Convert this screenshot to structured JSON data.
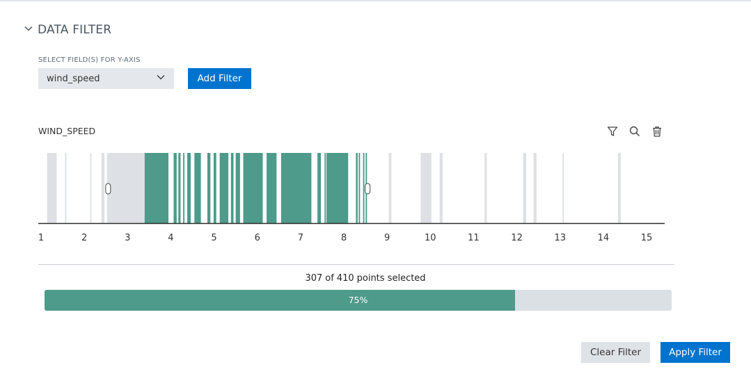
{
  "section": {
    "title": "DATA FILTER",
    "icon": "chevron-down-icon"
  },
  "field_select": {
    "label": "SELECT FIELD(S) FOR Y-AXIS",
    "value": "wind_speed",
    "icon": "chevron-down-icon"
  },
  "buttons": {
    "add_filter": "Add Filter",
    "clear_filter": "Clear Filter",
    "apply_filter": "Apply Filter"
  },
  "chart_header": {
    "title": "WIND_SPEED",
    "icons": [
      "filter-icon",
      "search-icon",
      "trash-icon"
    ]
  },
  "colors": {
    "selected": "#4e9a8b",
    "unselected": "#dde1e5",
    "accent": "#0073cf"
  },
  "chart_data": {
    "type": "bar",
    "xlim": [
      1,
      15
    ],
    "tick_labels": [
      "1",
      "2",
      "3",
      "4",
      "5",
      "6",
      "7",
      "8",
      "9",
      "10",
      "11",
      "12",
      "13",
      "14",
      "15"
    ],
    "selection_range": [
      2.55,
      8.55
    ],
    "bars": [
      {
        "x": 1.25,
        "w": 0.22
      },
      {
        "x": 1.57,
        "w": 0.03
      },
      {
        "x": 2.15,
        "w": 0.03
      },
      {
        "x": 2.43,
        "w": 0.07
      },
      {
        "x": 3.0,
        "w": 0.95
      },
      {
        "x": 3.67,
        "w": 0.55
      },
      {
        "x": 4.1,
        "w": 0.07
      },
      {
        "x": 4.2,
        "w": 0.05
      },
      {
        "x": 4.3,
        "w": 0.03
      },
      {
        "x": 4.42,
        "w": 0.08
      },
      {
        "x": 4.62,
        "w": 0.15
      },
      {
        "x": 4.88,
        "w": 0.07
      },
      {
        "x": 5.02,
        "w": 0.06
      },
      {
        "x": 5.23,
        "w": 0.2
      },
      {
        "x": 5.42,
        "w": 0.06
      },
      {
        "x": 5.55,
        "w": 0.1
      },
      {
        "x": 5.9,
        "w": 0.45
      },
      {
        "x": 6.33,
        "w": 0.23
      },
      {
        "x": 6.9,
        "w": 0.7
      },
      {
        "x": 7.43,
        "w": 0.08
      },
      {
        "x": 7.57,
        "w": 0.03
      },
      {
        "x": 7.85,
        "w": 0.5
      },
      {
        "x": 8.3,
        "w": 0.04
      },
      {
        "x": 8.36,
        "w": 0.03
      },
      {
        "x": 8.46,
        "w": 0.03
      },
      {
        "x": 8.52,
        "w": 0.03
      },
      {
        "x": 9.07,
        "w": 0.06
      },
      {
        "x": 9.9,
        "w": 0.25
      },
      {
        "x": 10.25,
        "w": 0.07
      },
      {
        "x": 11.28,
        "w": 0.05
      },
      {
        "x": 12.18,
        "w": 0.07
      },
      {
        "x": 12.42,
        "w": 0.07
      },
      {
        "x": 13.07,
        "w": 0.03
      },
      {
        "x": 14.37,
        "w": 0.06
      }
    ]
  },
  "summary": {
    "selected": "307",
    "of_text": "of",
    "total": "410",
    "suffix": "points selected"
  },
  "progress": {
    "percent": 75,
    "label": "75%"
  }
}
